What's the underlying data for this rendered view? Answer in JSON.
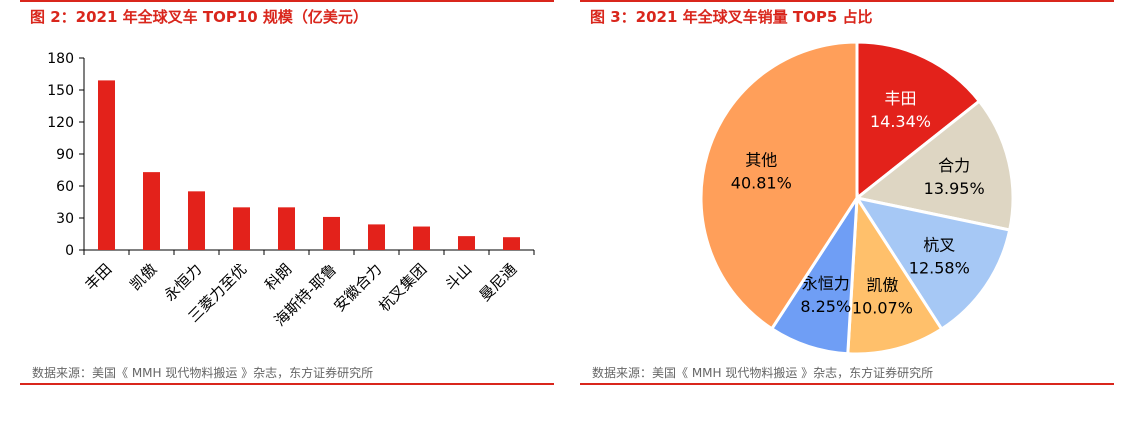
{
  "colors": {
    "accent": "#d9261c",
    "source_text": "#666666"
  },
  "left": {
    "title": "图 2：2021 年全球叉车 TOP10 规模（亿美元）",
    "source": "数据来源：美国《 MMH 现代物料搬运 》杂志，东方证券研究所"
  },
  "right": {
    "title": "图 3：2021 年全球叉车销量 TOP5 占比",
    "source": "数据来源：美国《 MMH 现代物料搬运 》杂志，东方证券研究所"
  },
  "chart_data": [
    {
      "type": "bar",
      "title": "图 2：2021 年全球叉车 TOP10 规模（亿美元）",
      "categories": [
        "丰田",
        "凯傲",
        "永恒力",
        "三菱力至优",
        "科朗",
        "海斯特-耶鲁",
        "安徽合力",
        "杭叉集团",
        "斗山",
        "曼尼通"
      ],
      "values": [
        159,
        73,
        55,
        40,
        40,
        31,
        24,
        22,
        13,
        12
      ],
      "ylim": [
        0,
        180
      ],
      "yticks": [
        0,
        30,
        60,
        90,
        120,
        150,
        180
      ],
      "bar_color": "#e3221b",
      "grid": false,
      "legend": "none"
    },
    {
      "type": "pie",
      "title": "图 3：2021 年全球叉车销量 TOP5 占比",
      "slices": [
        {
          "label": "丰田",
          "value": 14.34,
          "text": "14.34%",
          "color": "#e3221b"
        },
        {
          "label": "合力",
          "value": 13.95,
          "text": "13.95%",
          "color": "#ded6c3"
        },
        {
          "label": "杭叉",
          "value": 12.58,
          "text": "12.58%",
          "color": "#a6c8f5"
        },
        {
          "label": "凯傲",
          "value": 10.07,
          "text": "10.07%",
          "color": "#ffc06b"
        },
        {
          "label": "永恒力",
          "value": 8.25,
          "text": "8.25%",
          "color": "#6f9ef5"
        },
        {
          "label": "其他",
          "value": 40.81,
          "text": "40.81%",
          "color": "#ff9f5a"
        }
      ],
      "legend": "none"
    }
  ]
}
